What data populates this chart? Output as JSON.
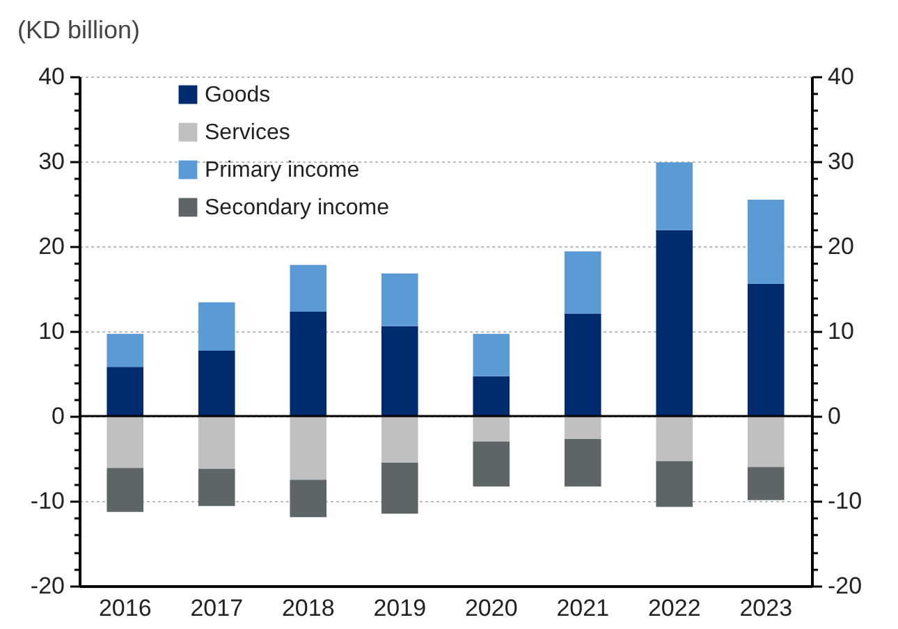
{
  "chart_data": {
    "type": "bar",
    "stacked": true,
    "ylabel": "(KD billion)",
    "categories": [
      "2016",
      "2017",
      "2018",
      "2019",
      "2020",
      "2021",
      "2022",
      "2023"
    ],
    "series": [
      {
        "name": "Goods",
        "color": "#002b6f",
        "values": [
          5.8,
          7.7,
          12.3,
          10.6,
          4.7,
          12.1,
          21.9,
          15.6
        ]
      },
      {
        "name": "Services",
        "color": "#c0c0c0",
        "values": [
          -6.1,
          -6.2,
          -7.5,
          -5.5,
          -3.0,
          -2.7,
          -5.3,
          -6.0
        ]
      },
      {
        "name": "Primary income",
        "color": "#5b9bd5",
        "values": [
          3.9,
          5.7,
          5.5,
          6.2,
          5.0,
          7.3,
          8.0,
          9.9
        ]
      },
      {
        "name": "Secondary income",
        "color": "#5e6566",
        "values": [
          -5.2,
          -4.4,
          -4.4,
          -6.0,
          -5.3,
          -5.6,
          -5.4,
          -3.9
        ]
      }
    ],
    "ylim": [
      -20,
      40
    ],
    "yticks": [
      -20,
      {
        "value": -18,
        "label": null
      },
      {
        "value": -16,
        "label": null
      },
      {
        "value": -14,
        "label": null
      },
      {
        "value": -12,
        "label": null
      },
      -10,
      {
        "value": -8,
        "label": null
      },
      {
        "value": -6,
        "label": null
      },
      {
        "value": -4,
        "label": null
      },
      {
        "value": -2,
        "label": null
      },
      0,
      {
        "value": 2,
        "label": null
      },
      {
        "value": 4,
        "label": null
      },
      {
        "value": 6,
        "label": null
      },
      {
        "value": 8,
        "label": null
      },
      10,
      {
        "value": 12,
        "label": null
      },
      {
        "value": 14,
        "label": null
      },
      {
        "value": 16,
        "label": null
      },
      {
        "value": 18,
        "label": null
      },
      20,
      {
        "value": 22,
        "label": null
      },
      {
        "value": 24,
        "label": null
      },
      {
        "value": 26,
        "label": null
      },
      {
        "value": 28,
        "label": null
      },
      30,
      {
        "value": 32,
        "label": null
      },
      {
        "value": 34,
        "label": null
      },
      {
        "value": 36,
        "label": null
      },
      {
        "value": 38,
        "label": null
      },
      40
    ],
    "y2lim": [
      -20,
      40
    ],
    "y2ticks": [
      -20,
      {
        "value": -18,
        "label": null
      },
      {
        "value": -16,
        "label": null
      },
      {
        "value": -14,
        "label": null
      },
      {
        "value": -12,
        "label": null
      },
      -10,
      {
        "value": -8,
        "label": null
      },
      {
        "value": -6,
        "label": null
      },
      {
        "value": -4,
        "label": null
      },
      {
        "value": -2,
        "label": null
      },
      0,
      {
        "value": 2,
        "label": null
      },
      {
        "value": 4,
        "label": null
      },
      {
        "value": 6,
        "label": null
      },
      {
        "value": 8,
        "label": null
      },
      10,
      {
        "value": 12,
        "label": null
      },
      {
        "value": 14,
        "label": null
      },
      {
        "value": 16,
        "label": null
      },
      {
        "value": 18,
        "label": null
      },
      20,
      {
        "value": 22,
        "label": null
      },
      {
        "value": 24,
        "label": null
      },
      {
        "value": 26,
        "label": null
      },
      {
        "value": 28,
        "label": null
      },
      30,
      {
        "value": 32,
        "label": null
      },
      {
        "value": 34,
        "label": null
      },
      {
        "value": 36,
        "label": null
      },
      {
        "value": 38,
        "label": null
      },
      40
    ],
    "ref_lines": [
      {
        "axis": "y",
        "value": 0,
        "color": "#000000"
      }
    ],
    "grid": "y",
    "legend": "top left"
  }
}
